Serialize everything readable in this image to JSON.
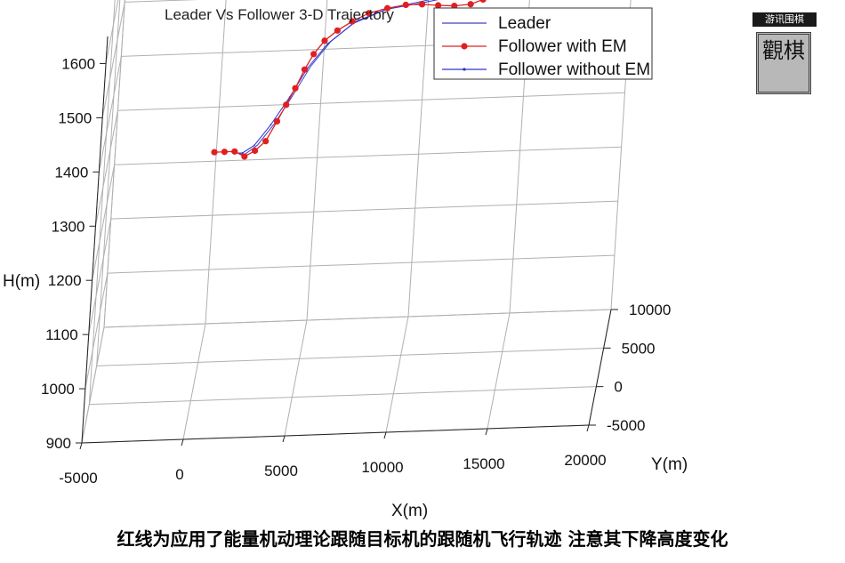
{
  "chart_data": {
    "type": "line",
    "projection": "3d",
    "title": "Leader Vs Follower 3-D Trajectory",
    "xlabel": "X(m)",
    "ylabel": "Y(m)",
    "zlabel": "H(m)",
    "xlim": [
      -5000,
      20000
    ],
    "ylim": [
      -5000,
      10000
    ],
    "zlim": [
      900,
      1650
    ],
    "x_ticks": [
      -5000,
      0,
      5000,
      10000,
      15000,
      20000
    ],
    "y_ticks": [
      -5000,
      0,
      5000,
      10000
    ],
    "z_ticks": [
      900,
      1000,
      1100,
      1200,
      1300,
      1400,
      1500,
      1600
    ],
    "grid": true,
    "legend_position": "top-right",
    "series": [
      {
        "name": "Leader",
        "color": "#4040c0",
        "marker": "none",
        "points": [
          [
            1250,
            8000,
            1240
          ],
          [
            1550,
            8000,
            1240
          ],
          [
            2100,
            8000,
            1255
          ],
          [
            2900,
            8000,
            1295
          ],
          [
            3700,
            8000,
            1345
          ],
          [
            4500,
            8000,
            1398
          ],
          [
            5400,
            8000,
            1442
          ],
          [
            6600,
            8000,
            1478
          ],
          [
            8200,
            8000,
            1500
          ],
          [
            10000,
            8000,
            1512
          ],
          [
            11500,
            8000,
            1522
          ],
          [
            12600,
            8000,
            1545
          ],
          [
            13100,
            8000,
            1590
          ],
          [
            13200,
            8000,
            1626
          ],
          [
            12600,
            8000,
            1661
          ],
          [
            11300,
            8000,
            1678
          ],
          [
            9000,
            8000,
            1688
          ],
          [
            5000,
            8000,
            1693
          ],
          [
            1000,
            8000,
            1696
          ],
          [
            -2500,
            8000,
            1698
          ]
        ]
      },
      {
        "name": "Follower with EM",
        "color": "#e02020",
        "marker": "filled-circle",
        "points": [
          [
            0,
            8000,
            1245
          ],
          [
            500,
            8000,
            1245
          ],
          [
            1000,
            8000,
            1245
          ],
          [
            1500,
            8000,
            1235
          ],
          [
            2000,
            8000,
            1245
          ],
          [
            2500,
            8000,
            1262
          ],
          [
            3000,
            8000,
            1298
          ],
          [
            3400,
            8000,
            1328
          ],
          [
            3800,
            8000,
            1358
          ],
          [
            4200,
            8000,
            1392
          ],
          [
            4600,
            8000,
            1420
          ],
          [
            5100,
            8000,
            1444
          ],
          [
            5700,
            8000,
            1462
          ],
          [
            6400,
            8000,
            1478
          ],
          [
            7200,
            8000,
            1492
          ],
          [
            8100,
            8000,
            1500
          ],
          [
            9000,
            8000,
            1505
          ],
          [
            9800,
            8000,
            1505
          ],
          [
            10600,
            8000,
            1502
          ],
          [
            11400,
            8000,
            1500
          ],
          [
            12200,
            8000,
            1502
          ],
          [
            12800,
            8000,
            1510
          ],
          [
            13200,
            8000,
            1532
          ],
          [
            13350,
            8000,
            1560
          ],
          [
            13300,
            8000,
            1585
          ],
          [
            13000,
            8000,
            1612
          ],
          [
            12500,
            8000,
            1636
          ],
          [
            11900,
            8000,
            1655
          ],
          [
            11100,
            8000,
            1672
          ],
          [
            10000,
            8000,
            1684
          ],
          [
            8500,
            8000,
            1691
          ],
          [
            6500,
            8000,
            1694
          ],
          [
            4500,
            8000,
            1696
          ],
          [
            2500,
            8000,
            1697
          ],
          [
            500,
            8000,
            1698
          ],
          [
            -1500,
            8000,
            1699
          ],
          [
            -3000,
            8000,
            1700
          ]
        ]
      },
      {
        "name": "Follower without EM",
        "color": "#3030d0",
        "marker": "dot",
        "points": [
          [
            1050,
            8000,
            1242
          ],
          [
            1400,
            8000,
            1242
          ],
          [
            1950,
            8000,
            1255
          ],
          [
            2700,
            8000,
            1292
          ],
          [
            3550,
            8000,
            1342
          ],
          [
            4350,
            8000,
            1395
          ],
          [
            5250,
            8000,
            1438
          ],
          [
            6450,
            8000,
            1474
          ],
          [
            8050,
            8000,
            1498
          ],
          [
            9850,
            8000,
            1508
          ],
          [
            11400,
            8000,
            1518
          ],
          [
            12500,
            8000,
            1540
          ],
          [
            13000,
            8000,
            1585
          ],
          [
            13100,
            8000,
            1620
          ],
          [
            12500,
            8000,
            1656
          ],
          [
            11200,
            8000,
            1674
          ],
          [
            8900,
            8000,
            1685
          ],
          [
            4900,
            8000,
            1691
          ],
          [
            900,
            8000,
            1694
          ],
          [
            -2600,
            8000,
            1697
          ]
        ]
      }
    ]
  },
  "watermark": {
    "top_text": "游讯围棋",
    "main_text": "觀棋"
  },
  "caption": "红线为应用了能量机动理论跟随目标机的跟随机飞行轨迹 注意其下降高度变化"
}
